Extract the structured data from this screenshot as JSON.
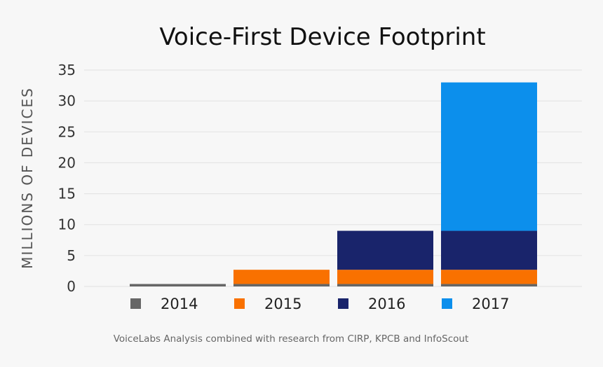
{
  "chart_data": {
    "type": "bar",
    "stacked": true,
    "title": "Voice-First Device Footprint",
    "ylabel": "MILLIONS OF DEVICES",
    "xlabel": "",
    "ylim": [
      0,
      35
    ],
    "yticks": [
      0,
      5,
      10,
      15,
      20,
      25,
      30,
      35
    ],
    "grid": true,
    "legend_position": "bottom",
    "categories": [
      "2014",
      "2015",
      "2016",
      "2017"
    ],
    "series": [
      {
        "name": "2014",
        "color": "#666666",
        "values": [
          0.4,
          0.4,
          0.4,
          0.4
        ]
      },
      {
        "name": "2015",
        "color": "#f97100",
        "values": [
          0,
          2.3,
          2.3,
          2.3
        ]
      },
      {
        "name": "2016",
        "color": "#19246b",
        "values": [
          0,
          0,
          6.3,
          6.3
        ]
      },
      {
        "name": "2017",
        "color": "#0c8fec",
        "values": [
          0,
          0,
          0,
          24
        ]
      }
    ],
    "source": "VoiceLabs Analysis combined with research from CIRP, KPCB and InfoScout"
  }
}
